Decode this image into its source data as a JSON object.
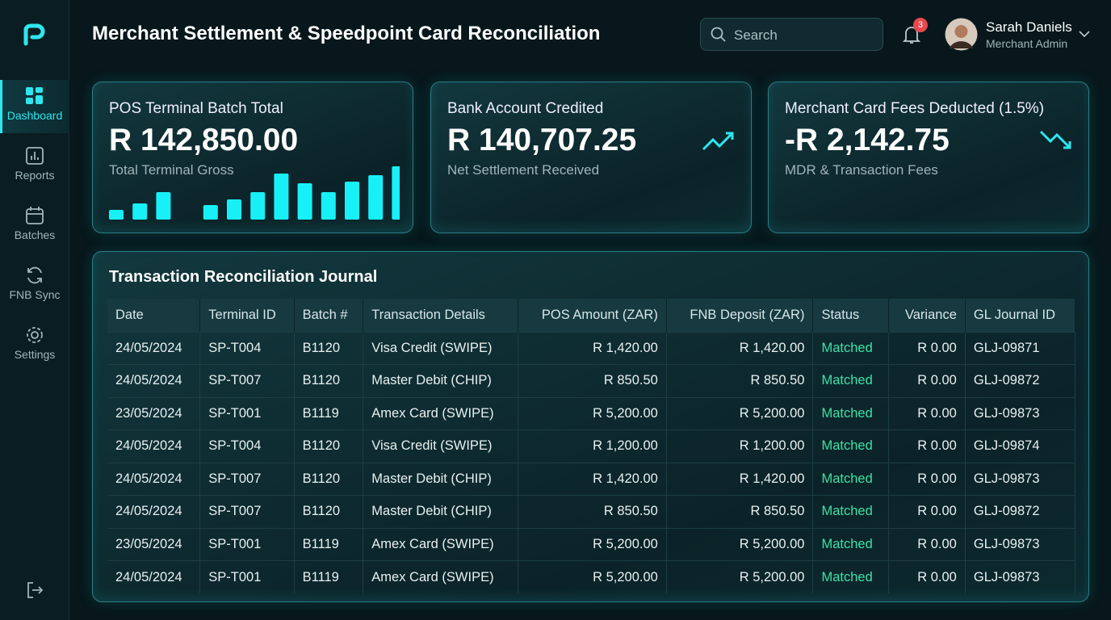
{
  "header": {
    "title": "Merchant Settlement & Speedpoint Card Reconciliation",
    "search_placeholder": "Search",
    "notification_count": "3",
    "user_name": "Sarah Daniels",
    "user_role": "Merchant Admin"
  },
  "nav": [
    "Dashboard",
    "Reports",
    "Batches",
    "FNB Sync",
    "Settings"
  ],
  "kpis": [
    {
      "label": "POS Terminal Batch Total",
      "value": "R 142,850.00",
      "caption": "Total Terminal Gross",
      "bars": [
        12,
        20,
        34,
        null,
        18,
        25,
        34,
        57,
        45,
        34,
        47,
        55,
        66
      ]
    },
    {
      "label": "Bank Account Credited",
      "value": "R 140,707.25",
      "caption": "Net Settlement Received"
    },
    {
      "label": "Merchant Card Fees Deducted (1.5%)",
      "value": "-R 2,142.75",
      "caption": "MDR & Transaction Fees"
    }
  ],
  "table": {
    "title": "Transaction Reconciliation Journal",
    "columns": [
      "Date",
      "Terminal ID",
      "Batch #",
      "Transaction Details",
      "POS Amount (ZAR)",
      "FNB Deposit (ZAR)",
      "Status",
      "Variance",
      "GL Journal ID"
    ],
    "rows": [
      [
        "24/05/2024",
        "SP-T004",
        "B1120",
        "Visa Credit (SWIPE)",
        "R 1,420.00",
        "R 1,420.00",
        "Matched",
        "R 0.00",
        "GLJ-09871"
      ],
      [
        "24/05/2024",
        "SP-T007",
        "B1120",
        "Master Debit (CHIP)",
        "R 850.50",
        "R 850.50",
        "Matched",
        "R 0.00",
        "GLJ-09872"
      ],
      [
        "23/05/2024",
        "SP-T001",
        "B1119",
        "Amex Card (SWIPE)",
        "R 5,200.00",
        "R 5,200.00",
        "Matched",
        "R 0.00",
        "GLJ-09873"
      ],
      [
        "24/05/2024",
        "SP-T004",
        "B1120",
        "Visa Credit (SWIPE)",
        "R 1,200.00",
        "R 1,200.00",
        "Matched",
        "R 0.00",
        "GLJ-09874"
      ],
      [
        "24/05/2024",
        "SP-T007",
        "B1120",
        "Master Debit (CHIP)",
        "R 1,420.00",
        "R 1,420.00",
        "Matched",
        "R 0.00",
        "GLJ-09873"
      ],
      [
        "24/05/2024",
        "SP-T007",
        "B1120",
        "Master Debit (CHIP)",
        "R 850.50",
        "R 850.50",
        "Matched",
        "R 0.00",
        "GLJ-09872"
      ],
      [
        "23/05/2024",
        "SP-T001",
        "B1119",
        "Amex Card (SWIPE)",
        "R 5,200.00",
        "R 5,200.00",
        "Matched",
        "R 0.00",
        "GLJ-09873"
      ],
      [
        "24/05/2024",
        "SP-T001",
        "B1119",
        "Amex Card (SWIPE)",
        "R 5,200.00",
        "R 5,200.00",
        "Matched",
        "R 0.00",
        "GLJ-09873"
      ]
    ]
  }
}
